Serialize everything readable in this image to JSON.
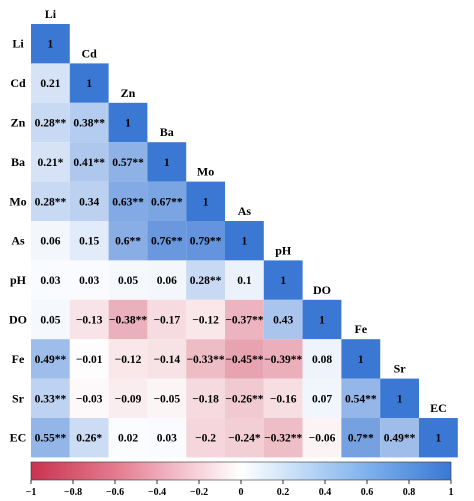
{
  "chart_data": {
    "type": "heatmap",
    "variables": [
      "Li",
      "Cd",
      "Zn",
      "Ba",
      "Mo",
      "As",
      "pH",
      "DO",
      "Fe",
      "Sr",
      "EC"
    ],
    "labels": [
      [
        "1"
      ],
      [
        "0.21",
        "1"
      ],
      [
        "0.28**",
        "0.38**",
        "1"
      ],
      [
        "0.21*",
        "0.41**",
        "0.57**",
        "1"
      ],
      [
        "0.28**",
        "0.34",
        "0.63**",
        "0.67**",
        "1"
      ],
      [
        "0.06",
        "0.15",
        "0.6**",
        "0.76**",
        "0.79**",
        "1"
      ],
      [
        "0.03",
        "0.03",
        "0.05",
        "0.06",
        "0.28**",
        "0.1",
        "1"
      ],
      [
        "0.05",
        "−0.13",
        "−0.38**",
        "−0.17",
        "−0.12",
        "−0.37**",
        "0.43",
        "1"
      ],
      [
        "0.49**",
        "−0.01",
        "−0.12",
        "−0.14",
        "−0.33**",
        "−0.45**",
        "−0.39**",
        "0.08",
        "1"
      ],
      [
        "0.33**",
        "−0.03",
        "−0.09",
        "−0.05",
        "−0.18",
        "−0.26**",
        "−0.16",
        "0.07",
        "0.54**",
        "1"
      ],
      [
        "0.55**",
        "0.26*",
        "0.02",
        "0.03",
        "−0.2",
        "−0.24*",
        "−0.32**",
        "−0.06",
        "0.7**",
        "0.49**",
        "1"
      ]
    ],
    "values": [
      [
        1
      ],
      [
        0.21,
        1
      ],
      [
        0.28,
        0.38,
        1
      ],
      [
        0.21,
        0.41,
        0.57,
        1
      ],
      [
        0.28,
        0.34,
        0.63,
        0.67,
        1
      ],
      [
        0.06,
        0.15,
        0.6,
        0.76,
        0.79,
        1
      ],
      [
        0.03,
        0.03,
        0.05,
        0.06,
        0.28,
        0.1,
        1
      ],
      [
        0.05,
        -0.13,
        -0.38,
        -0.17,
        -0.12,
        -0.37,
        0.43,
        1
      ],
      [
        0.49,
        -0.01,
        -0.12,
        -0.14,
        -0.33,
        -0.45,
        -0.39,
        0.08,
        1
      ],
      [
        0.33,
        -0.03,
        -0.09,
        -0.05,
        -0.18,
        -0.26,
        -0.16,
        0.07,
        0.54,
        1
      ],
      [
        0.55,
        0.26,
        0.02,
        0.03,
        -0.2,
        -0.24,
        -0.32,
        -0.06,
        0.7,
        0.49,
        1
      ]
    ],
    "colorbar": {
      "range": [
        -1,
        1
      ],
      "ticks": [
        "−1",
        "−0.8",
        "−0.6",
        "−0.4",
        "−0.2",
        "0",
        "0.2",
        "0.4",
        "0.6",
        "0.8",
        "1"
      ],
      "colors": {
        "negative": "#c9334f",
        "zero": "#ffffff",
        "positive": "#3a78d4"
      }
    },
    "grid": false
  }
}
